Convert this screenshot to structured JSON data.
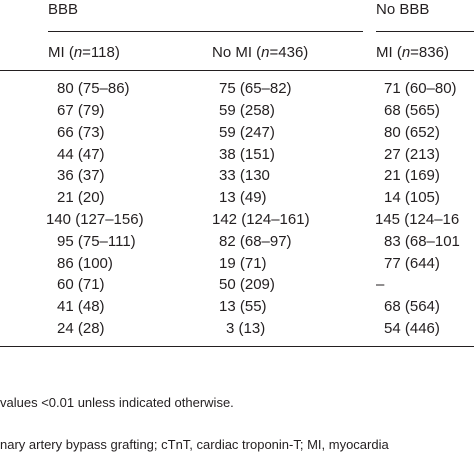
{
  "table": {
    "group_headers": [
      "BBB",
      "No BBB"
    ],
    "col_headers": [
      {
        "pre": "MI (",
        "n": "n",
        "post": "=118)"
      },
      {
        "pre": "No MI (",
        "n": "n",
        "post": "=436)"
      },
      {
        "pre": "MI (",
        "n": "n",
        "post": "=836)"
      }
    ],
    "rows": [
      [
        "80 (75–86)",
        "75 (65–82)",
        "71 (60–80)"
      ],
      [
        "67 (79)",
        "59 (258)",
        "68 (565)"
      ],
      [
        "66 (73)",
        "59 (247)",
        "80 (652)"
      ],
      [
        "44 (47)",
        "38 (151)",
        "27 (213)"
      ],
      [
        "36 (37)",
        "33 (130",
        "21 (169)"
      ],
      [
        "21 (20)",
        "13 (49)",
        "14 (105)"
      ],
      [
        "140 (127–156)",
        "142 (124–161)",
        "145 (124–16"
      ],
      [
        "95 (75–111)",
        "82 (68–97)",
        "83 (68–101"
      ],
      [
        "86 (100)",
        "19 (71)",
        "77 (644)"
      ],
      [
        "60 (71)",
        "50 (209)",
        "–"
      ],
      [
        "41 (48)",
        "13 (55)",
        "68 (564)"
      ],
      [
        "24 (28)",
        "3 (13)",
        "54 (446)"
      ]
    ]
  },
  "footnotes": {
    "line1": "values <0.01 unless indicated otherwise.",
    "line2": "nary artery bypass grafting; cTnT, cardiac troponin-T; MI, myocardia"
  }
}
